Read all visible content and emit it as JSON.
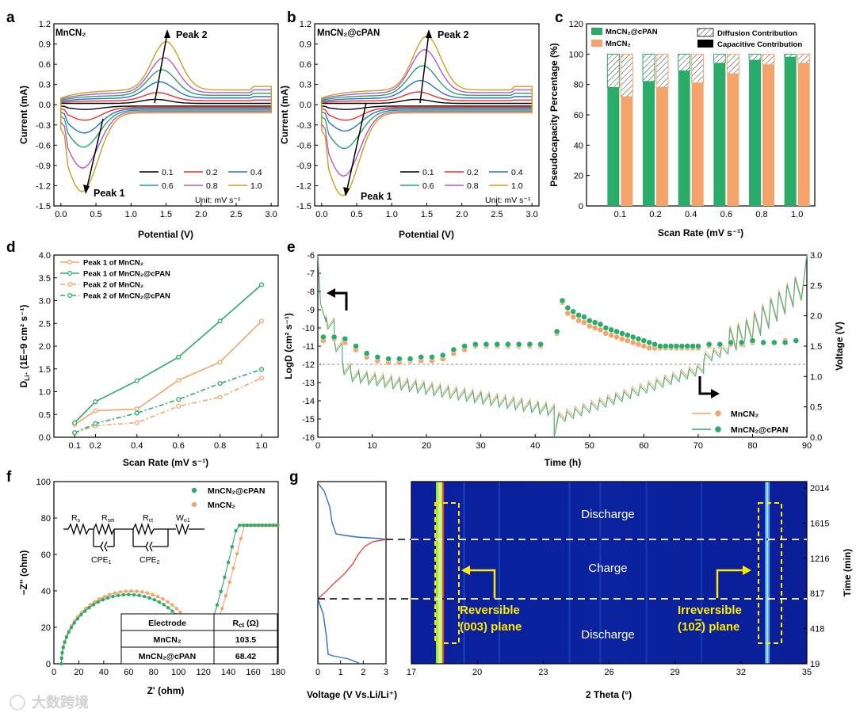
{
  "colors": {
    "scan": [
      "#000000",
      "#e8312f",
      "#2573c8",
      "#2ba26a",
      "#b658d0",
      "#c9a21e"
    ],
    "green": "#2bab6a",
    "orange": "#f4a46a",
    "yellow": "#ffea00"
  },
  "chart_data": [
    {
      "panel": "a",
      "type": "line",
      "title": "MnCN₂",
      "xlabel": "Potential (V)",
      "ylabel": "Current (mA)",
      "xlim": [
        -0.1,
        3.1
      ],
      "ylim": [
        -1.5,
        1.2
      ],
      "xticks": [
        "0.0",
        "0.5",
        "1.0",
        "1.5",
        "2.0",
        "2.5",
        "3.0"
      ],
      "yticks": [
        "-1.5",
        "-1.2",
        "-0.9",
        "-0.6",
        "-0.3",
        "0.0",
        "0.3",
        "0.6",
        "0.9",
        "1.2"
      ],
      "legend": [
        "0.1",
        "0.2",
        "0.4",
        "0.6",
        "0.8",
        "1.0"
      ],
      "legend_unit": "Unit: mV s⁻¹",
      "annotations": [
        "Peak 2",
        "Peak 1"
      ],
      "series": [
        {
          "name": "0.1",
          "anodic_peak": 0.06,
          "cathodic_peak": -0.05
        },
        {
          "name": "0.2",
          "anodic_peak": 0.14,
          "cathodic_peak": -0.2
        },
        {
          "name": "0.4",
          "anodic_peak": 0.28,
          "cathodic_peak": -0.38
        },
        {
          "name": "0.6",
          "anodic_peak": 0.44,
          "cathodic_peak": -0.58
        },
        {
          "name": "0.8",
          "anodic_peak": 0.6,
          "cathodic_peak": -0.88
        },
        {
          "name": "1.0",
          "anodic_peak": 0.82,
          "cathodic_peak": -1.22
        }
      ]
    },
    {
      "panel": "b",
      "type": "line",
      "title": "MnCN₂@cPAN",
      "xlabel": "Potential (V)",
      "ylabel": "Current (mA)",
      "xlim": [
        -0.1,
        3.1
      ],
      "ylim": [
        -1.5,
        1.2
      ],
      "xticks": [
        "0.0",
        "0.5",
        "1.0",
        "1.5",
        "2.0",
        "2.5",
        "3.0"
      ],
      "yticks": [
        "-1.5",
        "-1.2",
        "-0.9",
        "-0.6",
        "-0.3",
        "0.0",
        "0.3",
        "0.6",
        "0.9",
        "1.2"
      ],
      "legend": [
        "0.1",
        "0.2",
        "0.4",
        "0.6",
        "0.8",
        "1.0"
      ],
      "legend_unit": "Unit: mV s⁻¹",
      "annotations": [
        "Peak 2",
        "Peak 1"
      ],
      "series": [
        {
          "name": "0.1",
          "anodic_peak": 0.06,
          "cathodic_peak": -0.05
        },
        {
          "name": "0.2",
          "anodic_peak": 0.15,
          "cathodic_peak": -0.2
        },
        {
          "name": "0.4",
          "anodic_peak": 0.3,
          "cathodic_peak": -0.35
        },
        {
          "name": "0.6",
          "anodic_peak": 0.5,
          "cathodic_peak": -0.6
        },
        {
          "name": "0.8",
          "anodic_peak": 0.72,
          "cathodic_peak": -1.0
        },
        {
          "name": "1.0",
          "anodic_peak": 0.9,
          "cathodic_peak": -1.28
        }
      ]
    },
    {
      "panel": "c",
      "type": "bar",
      "xlabel": "Scan Rate (mV s⁻¹)",
      "ylabel": "Pseudocapacity Percentage (%)",
      "ylim": [
        0,
        120
      ],
      "yticks": [
        "0",
        "20",
        "40",
        "60",
        "80",
        "100",
        "120"
      ],
      "categories": [
        "0.1",
        "0.2",
        "0.4",
        "0.6",
        "0.8",
        "1.0"
      ],
      "legend": [
        "MnCN₂@cPAN",
        "MnCN₂",
        "Diffusion Contribution",
        "Capacitive Contribution"
      ],
      "series": [
        {
          "name": "MnCN₂@cPAN",
          "values": [
            78,
            82,
            89,
            94,
            96,
            98
          ]
        },
        {
          "name": "MnCN₂",
          "values": [
            72,
            78,
            81,
            87,
            93,
            94
          ]
        }
      ]
    },
    {
      "panel": "d",
      "type": "line",
      "xlabel": "Scan Rate (mV s⁻¹)",
      "ylabel": "D",
      "ylabel_sub": "Li⁺",
      "ylabel_rest": " (1E−9 cm² s⁻¹)",
      "xlim": [
        0,
        1.08
      ],
      "ylim": [
        0,
        4.0
      ],
      "xticks": [
        "0.1",
        "0.2",
        "0.4",
        "0.6",
        "0.8",
        "1.0"
      ],
      "yticks": [
        "0.0",
        "0.5",
        "1.0",
        "1.5",
        "2.0",
        "2.5",
        "3.0",
        "3.5",
        "4.0"
      ],
      "x": [
        0.1,
        0.2,
        0.4,
        0.6,
        0.8,
        1.0
      ],
      "series": [
        {
          "name": "Peak 1 of MnCN₂",
          "values": [
            0.28,
            0.58,
            0.62,
            1.25,
            1.65,
            2.55
          ]
        },
        {
          "name": "Peak 1 of MnCN₂@cPAN",
          "values": [
            0.32,
            0.78,
            1.24,
            1.76,
            2.55,
            3.35
          ]
        },
        {
          "name": "Peak 2 of MnCN₂",
          "values": [
            0.1,
            0.25,
            0.32,
            0.68,
            0.88,
            1.3
          ]
        },
        {
          "name": "Peak 2 of MnCN₂@cPAN",
          "values": [
            0.1,
            0.3,
            0.53,
            0.83,
            1.18,
            1.49
          ]
        }
      ]
    },
    {
      "panel": "e",
      "type": "scatter",
      "xlabel": "Time (h)",
      "ylabel": "LogD (cm² s⁻¹)",
      "ylabel_right": "Voltage (V)",
      "xlim": [
        0,
        90
      ],
      "ylim": [
        -16,
        -6
      ],
      "ylim_right": [
        0,
        3.0
      ],
      "xticks": [
        "0",
        "10",
        "20",
        "30",
        "40",
        "50",
        "60",
        "70",
        "80",
        "90"
      ],
      "yticks": [
        "-16",
        "-15",
        "-14",
        "-13",
        "-12",
        "-11",
        "-10",
        "-9",
        "-8",
        "-7",
        "-6"
      ],
      "yticks_right": [
        "0.0",
        "0.5",
        "1.0",
        "1.5",
        "2.0",
        "2.5",
        "3.0"
      ],
      "legend": [
        "MnCN₂",
        "MnCN₂@cPAN"
      ],
      "series": [
        {
          "name": "MnCN₂",
          "points": [
            [
              1,
              -10.7
            ],
            [
              3,
              -10.6
            ],
            [
              5,
              -10.8
            ],
            [
              7,
              -11.2
            ],
            [
              9,
              -11.6
            ],
            [
              11,
              -11.8
            ],
            [
              13,
              -11.9
            ],
            [
              15,
              -11.9
            ],
            [
              17,
              -11.8
            ],
            [
              19,
              -11.8
            ],
            [
              21,
              -11.8
            ],
            [
              23,
              -11.7
            ],
            [
              25,
              -11.4
            ],
            [
              27,
              -11.2
            ],
            [
              29,
              -11
            ],
            [
              31,
              -11
            ],
            [
              33,
              -11
            ],
            [
              35,
              -11
            ],
            [
              37,
              -11
            ],
            [
              39,
              -11
            ],
            [
              41,
              -11
            ],
            [
              44,
              -10.3
            ],
            [
              45,
              -8.6
            ],
            [
              46,
              -9.2
            ],
            [
              47,
              -9.4
            ],
            [
              48,
              -9.6
            ],
            [
              49,
              -9.7
            ],
            [
              50,
              -9.9
            ],
            [
              51,
              -10
            ],
            [
              52,
              -10.1
            ],
            [
              53,
              -10.3
            ],
            [
              54,
              -10.4
            ],
            [
              55,
              -10.5
            ],
            [
              56,
              -10.6
            ],
            [
              57,
              -10.7
            ],
            [
              58,
              -10.8
            ],
            [
              59,
              -10.9
            ],
            [
              60,
              -11
            ],
            [
              61,
              -11.1
            ],
            [
              62,
              -11.1
            ],
            [
              63,
              -11.1
            ],
            [
              64,
              -11.1
            ],
            [
              65,
              -11.1
            ],
            [
              66,
              -11.1
            ],
            [
              67,
              -11.1
            ],
            [
              68,
              -11.1
            ],
            [
              69,
              -11.1
            ],
            [
              70,
              -11.1
            ],
            [
              72,
              -11
            ],
            [
              74,
              -11
            ],
            [
              76,
              -10.9
            ],
            [
              78,
              -10.9
            ],
            [
              80,
              -10.8
            ],
            [
              82,
              -10.8
            ],
            [
              84,
              -10.8
            ],
            [
              86,
              -10.7
            ],
            [
              88,
              -10.7
            ]
          ]
        },
        {
          "name": "MnCN₂@cPAN",
          "points": [
            [
              1,
              -10.5
            ],
            [
              3,
              -10.5
            ],
            [
              5,
              -10.6
            ],
            [
              7,
              -11
            ],
            [
              9,
              -11.4
            ],
            [
              11,
              -11.6
            ],
            [
              13,
              -11.7
            ],
            [
              15,
              -11.7
            ],
            [
              17,
              -11.7
            ],
            [
              19,
              -11.6
            ],
            [
              21,
              -11.6
            ],
            [
              23,
              -11.5
            ],
            [
              25,
              -11.2
            ],
            [
              27,
              -11
            ],
            [
              29,
              -10.9
            ],
            [
              31,
              -10.9
            ],
            [
              33,
              -10.9
            ],
            [
              35,
              -10.9
            ],
            [
              37,
              -10.9
            ],
            [
              39,
              -10.9
            ],
            [
              41,
              -10.9
            ],
            [
              44,
              -10.2
            ],
            [
              45,
              -8.5
            ],
            [
              46,
              -8.9
            ],
            [
              47,
              -9.1
            ],
            [
              48,
              -9.3
            ],
            [
              49,
              -9.4
            ],
            [
              50,
              -9.6
            ],
            [
              51,
              -9.7
            ],
            [
              52,
              -9.8
            ],
            [
              53,
              -10
            ],
            [
              54,
              -10.1
            ],
            [
              55,
              -10.2
            ],
            [
              56,
              -10.3
            ],
            [
              57,
              -10.4
            ],
            [
              58,
              -10.5
            ],
            [
              59,
              -10.6
            ],
            [
              60,
              -10.7
            ],
            [
              61,
              -10.8
            ],
            [
              62,
              -10.9
            ],
            [
              63,
              -11
            ],
            [
              64,
              -11
            ],
            [
              65,
              -11
            ],
            [
              66,
              -11
            ],
            [
              67,
              -11
            ],
            [
              68,
              -11
            ],
            [
              69,
              -11
            ],
            [
              70,
              -11
            ],
            [
              72,
              -10.9
            ],
            [
              74,
              -10.9
            ],
            [
              76,
              -10.8
            ],
            [
              78,
              -10.8
            ],
            [
              80,
              -10.7
            ],
            [
              82,
              -10.8
            ],
            [
              84,
              -10.8
            ],
            [
              86,
              -10.8
            ],
            [
              88,
              -10.7
            ]
          ]
        }
      ]
    },
    {
      "panel": "f",
      "type": "scatter",
      "xlabel": "Z' (ohm)",
      "ylabel": "−Z'' (ohm)",
      "xlim": [
        0,
        180
      ],
      "ylim": [
        0,
        100
      ],
      "xticks": [
        "0",
        "20",
        "40",
        "60",
        "80",
        "100",
        "120",
        "140",
        "160",
        "180"
      ],
      "yticks": [
        "0",
        "20",
        "40",
        "60",
        "80",
        "100"
      ],
      "legend": [
        "MnCN₂@cPAN",
        "MnCN₂"
      ],
      "circuit_labels": [
        "R",
        "s",
        "R",
        "sei",
        "R",
        "ct",
        "W",
        "o1",
        "CPE",
        "1",
        "CPE",
        "2"
      ],
      "table": {
        "header": [
          "Electrode",
          "R",
          "ct",
          " (Ω)"
        ],
        "rows": [
          [
            "MnCN₂",
            "103.5"
          ],
          [
            "MnCN₂@cPAN",
            "68.42"
          ]
        ]
      },
      "series": [
        {
          "name": "MnCN₂@cPAN",
          "rct": 68.42
        },
        {
          "name": "MnCN₂",
          "rct": 103.5
        }
      ]
    },
    {
      "panel": "g",
      "type": "heatmap",
      "xlabel": "2 Theta (°)",
      "ylabel": "Time (min)",
      "xlim": [
        17,
        35
      ],
      "xticks": [
        "17",
        "20",
        "23",
        "26",
        "29",
        "32",
        "35"
      ],
      "yticks_right": [
        "19",
        "418",
        "817",
        "1216",
        "1615",
        "2014"
      ],
      "voltage_xlabel": "Voltage (V Vs.Li/Li⁺)",
      "voltage_xticks": [
        "0",
        "1",
        "2",
        "3"
      ],
      "regions": [
        "Discharge",
        "Charge",
        "Discharge"
      ],
      "callouts": [
        {
          "line1": "Reversible",
          "line2": "(003) plane"
        },
        {
          "line1": "Irreversible",
          "line2": "(10",
          "bar": "2",
          "line3": ") plane"
        }
      ]
    }
  ],
  "watermark": "大数跨境"
}
